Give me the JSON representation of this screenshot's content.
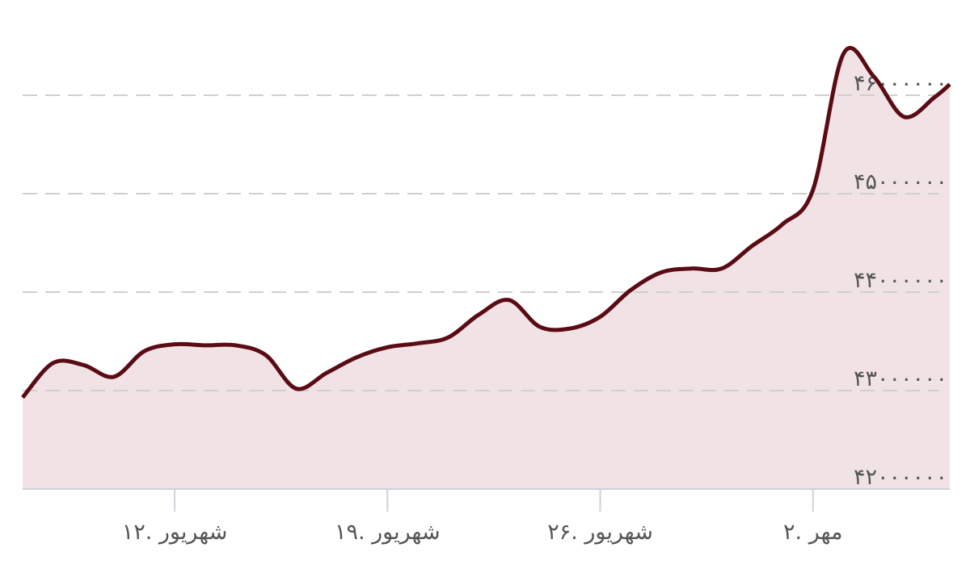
{
  "chart_data": {
    "type": "area",
    "x": [
      7,
      8,
      9,
      10,
      11,
      12,
      13,
      14,
      15,
      16,
      17,
      18,
      19,
      20,
      21,
      22,
      23,
      24,
      25,
      26,
      27,
      28,
      29,
      30,
      31,
      32,
      33,
      34,
      35,
      36,
      37,
      37.5
    ],
    "series": [
      {
        "color": "#5a0b14",
        "values": [
          42930000,
          43280000,
          43260000,
          43140000,
          43400000,
          43470000,
          43460000,
          43460000,
          43360000,
          43020000,
          43180000,
          43340000,
          43440000,
          43480000,
          43540000,
          43770000,
          43920000,
          43650000,
          43630000,
          43750000,
          44020000,
          44200000,
          44240000,
          44240000,
          44470000,
          44690000,
          45040000,
          46420000,
          46190000,
          45780000,
          45980000,
          46110000
        ]
      }
    ],
    "fill_color": "#f1e3e5",
    "xlim": [
      7,
      37.5
    ],
    "xticks": [
      {
        "value": 12,
        "label": "۱۲. شهریور"
      },
      {
        "value": 19,
        "label": "۱۹. شهریور"
      },
      {
        "value": 26,
        "label": "۲۶. شهریور"
      },
      {
        "value": 33,
        "label": "۲. مهر"
      }
    ],
    "ylim": [
      42000000,
      46900000
    ],
    "yticks": [
      {
        "value": 42000000,
        "label": "۴۲۰۰۰۰۰۰"
      },
      {
        "value": 43000000,
        "label": "۴۳۰۰۰۰۰۰"
      },
      {
        "value": 44000000,
        "label": "۴۴۰۰۰۰۰۰"
      },
      {
        "value": 45000000,
        "label": "۴۵۰۰۰۰۰۰"
      },
      {
        "value": 46000000,
        "label": "۴۶۰۰۰۰۰۰"
      }
    ],
    "grid": true
  }
}
